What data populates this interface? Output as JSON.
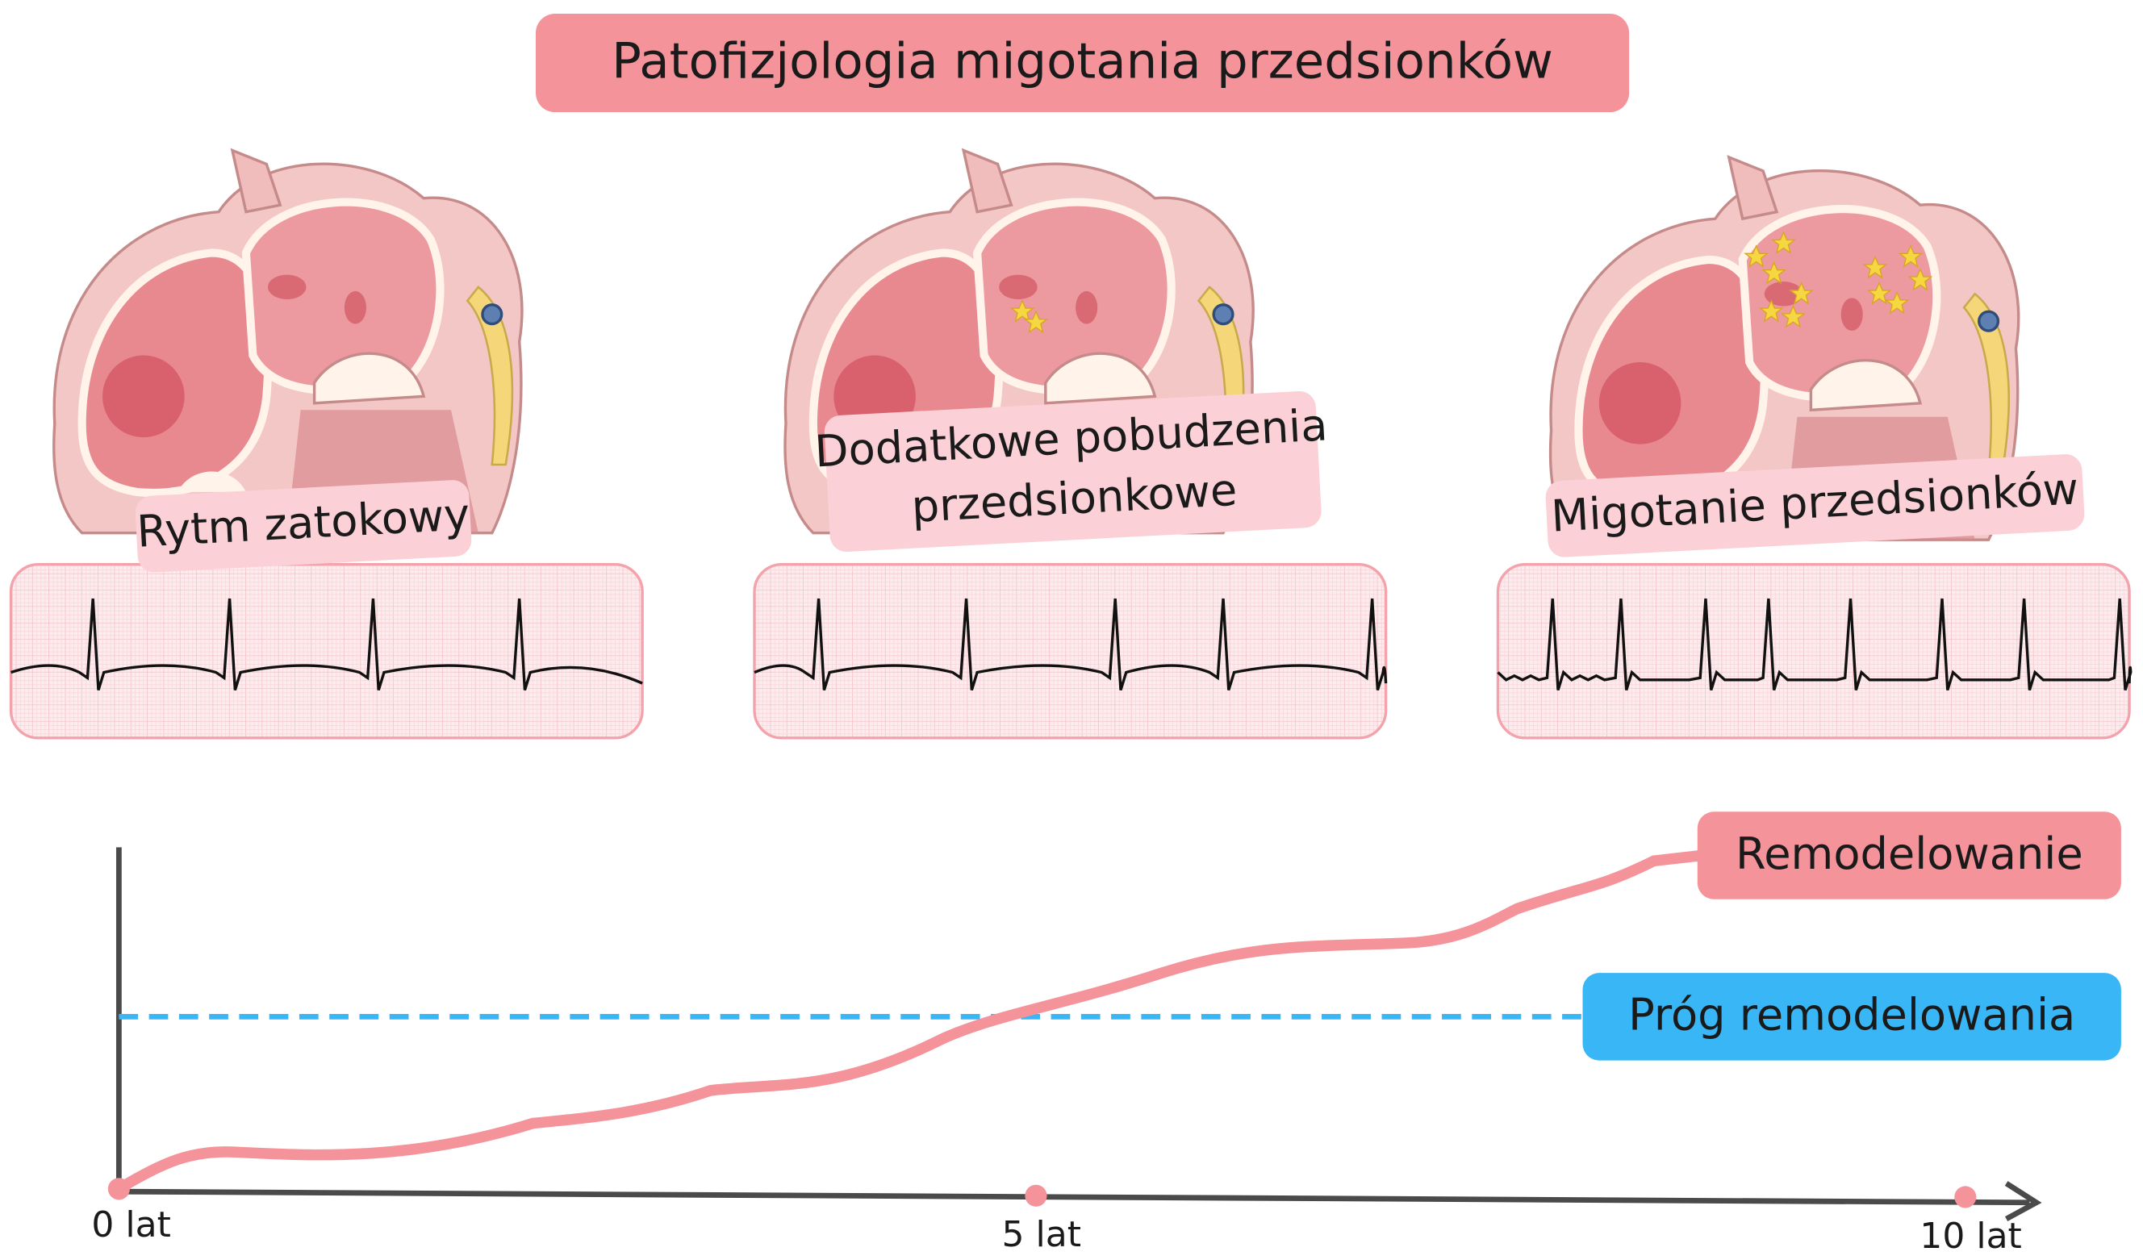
{
  "title": "Patofizjologia migotania przedsionków",
  "stages": [
    {
      "lines": [
        "Rytm zatokowy"
      ]
    },
    {
      "lines": [
        "Dodatkowe pobudzenia",
        "przedsionkowe"
      ]
    },
    {
      "lines": [
        "Migotanie przedsionków"
      ]
    }
  ],
  "timeline": {
    "curve_label": "Remodelowanie",
    "threshold_label": "Próg remodelowania",
    "ticks": [
      "0 lat",
      "5 lat",
      "10 lat"
    ]
  }
}
